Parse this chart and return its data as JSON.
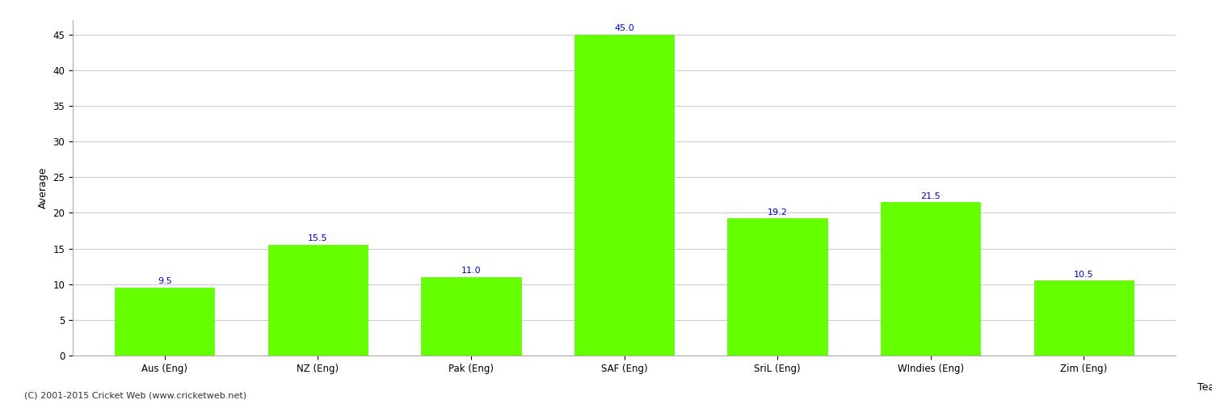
{
  "categories": [
    "Aus (Eng)",
    "NZ (Eng)",
    "Pak (Eng)",
    "SAF (Eng)",
    "SriL (Eng)",
    "WIndies (Eng)",
    "Zim (Eng)"
  ],
  "values": [
    9.5,
    15.5,
    11.0,
    45.0,
    19.2,
    21.5,
    10.5
  ],
  "bar_color": "#66ff00",
  "bar_edge_color": "#55ee00",
  "value_color": "#0000cc",
  "xlabel": "Team",
  "ylabel": "Average",
  "ylim": [
    0,
    47
  ],
  "yticks": [
    0,
    5,
    10,
    15,
    20,
    25,
    30,
    35,
    40,
    45
  ],
  "background_color": "#ffffff",
  "grid_color": "#cccccc",
  "footnote": "(C) 2001-2015 Cricket Web (www.cricketweb.net)",
  "axis_label_fontsize": 9,
  "tick_fontsize": 8.5,
  "value_fontsize": 8,
  "footnote_fontsize": 8
}
